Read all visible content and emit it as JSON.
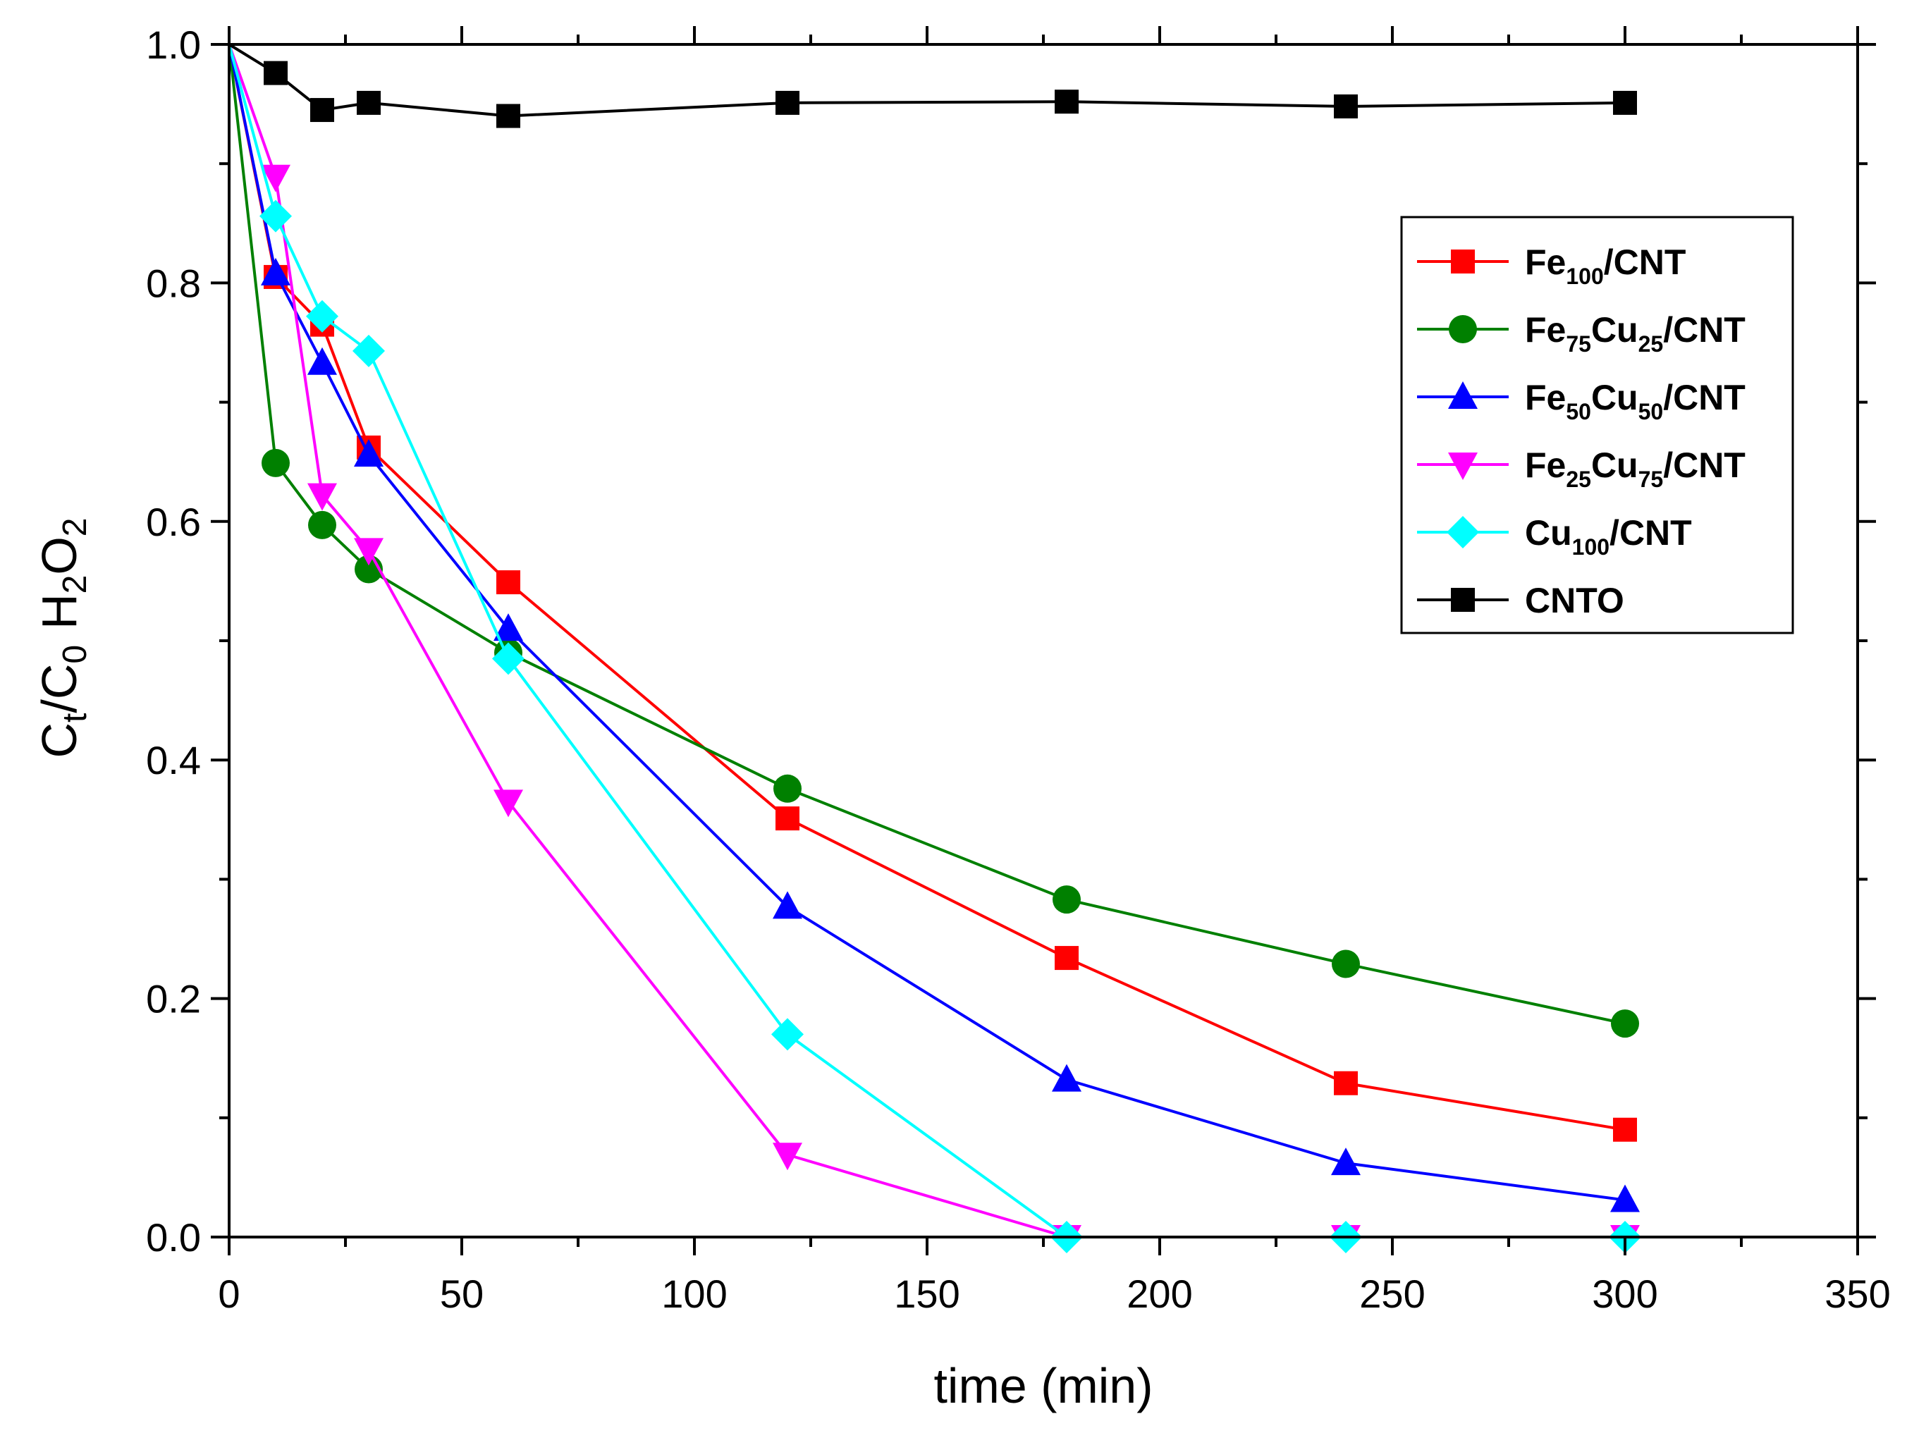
{
  "chart_data": {
    "type": "line",
    "title": "",
    "xlabel": "time (min)",
    "ylabel": "C_t/C_0 H_2O_2",
    "ylabel_parts": {
      "c1": "C",
      "t": "t",
      "slash": "/",
      "c2": "C",
      "zero": "0",
      "h": "H",
      "two_a": "2",
      "o": "O",
      "two_b": "2"
    },
    "xlim": [
      0,
      350
    ],
    "ylim": [
      0,
      1.0
    ],
    "x_ticks": [
      0,
      50,
      100,
      150,
      200,
      250,
      300,
      350
    ],
    "x_tick_labels": [
      "0",
      "50",
      "100",
      "150",
      "200",
      "250",
      "300",
      "350"
    ],
    "y_ticks": [
      0,
      0.2,
      0.4,
      0.6,
      0.8,
      1.0
    ],
    "y_tick_labels": [
      "0.0",
      "0.2",
      "0.4",
      "0.6",
      "0.8",
      "1.0"
    ],
    "grid": false,
    "legend_position": "top-right",
    "series": [
      {
        "name": "Fe100/CNT",
        "label_parts": [
          {
            "t": "Fe"
          },
          {
            "t": "100",
            "sub": true
          },
          {
            "t": "/CNT"
          }
        ],
        "color": "#ff0000",
        "marker": "square",
        "x": [
          0,
          10,
          20,
          30,
          60,
          120,
          180,
          240,
          300
        ],
        "y": [
          1.0,
          0.805,
          0.765,
          0.662,
          0.549,
          0.351,
          0.234,
          0.129,
          0.09
        ]
      },
      {
        "name": "Fe75Cu25/CNT",
        "label_parts": [
          {
            "t": "Fe"
          },
          {
            "t": "75",
            "sub": true
          },
          {
            "t": "Cu"
          },
          {
            "t": "25",
            "sub": true
          },
          {
            "t": "/CNT"
          }
        ],
        "color": "#008000",
        "marker": "circle",
        "x": [
          0,
          10,
          20,
          30,
          60,
          120,
          180,
          240,
          300
        ],
        "y": [
          1.0,
          0.649,
          0.597,
          0.56,
          0.49,
          0.376,
          0.283,
          0.229,
          0.179
        ]
      },
      {
        "name": "Fe50Cu50/CNT",
        "label_parts": [
          {
            "t": "Fe"
          },
          {
            "t": "50",
            "sub": true
          },
          {
            "t": "Cu"
          },
          {
            "t": "50",
            "sub": true
          },
          {
            "t": "/CNT"
          }
        ],
        "color": "#0000ff",
        "marker": "triangle-up",
        "x": [
          0,
          10,
          20,
          30,
          60,
          120,
          180,
          240,
          300
        ],
        "y": [
          1.0,
          0.808,
          0.733,
          0.656,
          0.51,
          0.277,
          0.132,
          0.062,
          0.031
        ]
      },
      {
        "name": "Fe25Cu75/CNT",
        "label_parts": [
          {
            "t": "Fe"
          },
          {
            "t": "25",
            "sub": true
          },
          {
            "t": "Cu"
          },
          {
            "t": "75",
            "sub": true
          },
          {
            "t": "/CNT"
          }
        ],
        "color": "#ff00ff",
        "marker": "triangle-down",
        "x": [
          0,
          10,
          20,
          30,
          60,
          120,
          180,
          240,
          300
        ],
        "y": [
          1.0,
          0.889,
          0.622,
          0.576,
          0.365,
          0.069,
          0.0,
          0.0,
          0.0
        ]
      },
      {
        "name": "Cu100/CNT",
        "label_parts": [
          {
            "t": "Cu"
          },
          {
            "t": "100",
            "sub": true
          },
          {
            "t": "/CNT"
          }
        ],
        "color": "#00ffff",
        "marker": "diamond",
        "x": [
          0,
          10,
          20,
          30,
          60,
          120,
          180,
          240,
          300
        ],
        "y": [
          1.0,
          0.856,
          0.772,
          0.743,
          0.485,
          0.17,
          0.0,
          0.0,
          0.0
        ]
      },
      {
        "name": "CNTO",
        "label_parts": [
          {
            "t": "CNTO"
          }
        ],
        "color": "#000000",
        "marker": "square",
        "x": [
          0,
          10,
          20,
          30,
          60,
          120,
          180,
          240,
          300
        ],
        "y": [
          1.0,
          0.976,
          0.945,
          0.951,
          0.94,
          0.951,
          0.952,
          0.948,
          0.951
        ]
      }
    ]
  }
}
